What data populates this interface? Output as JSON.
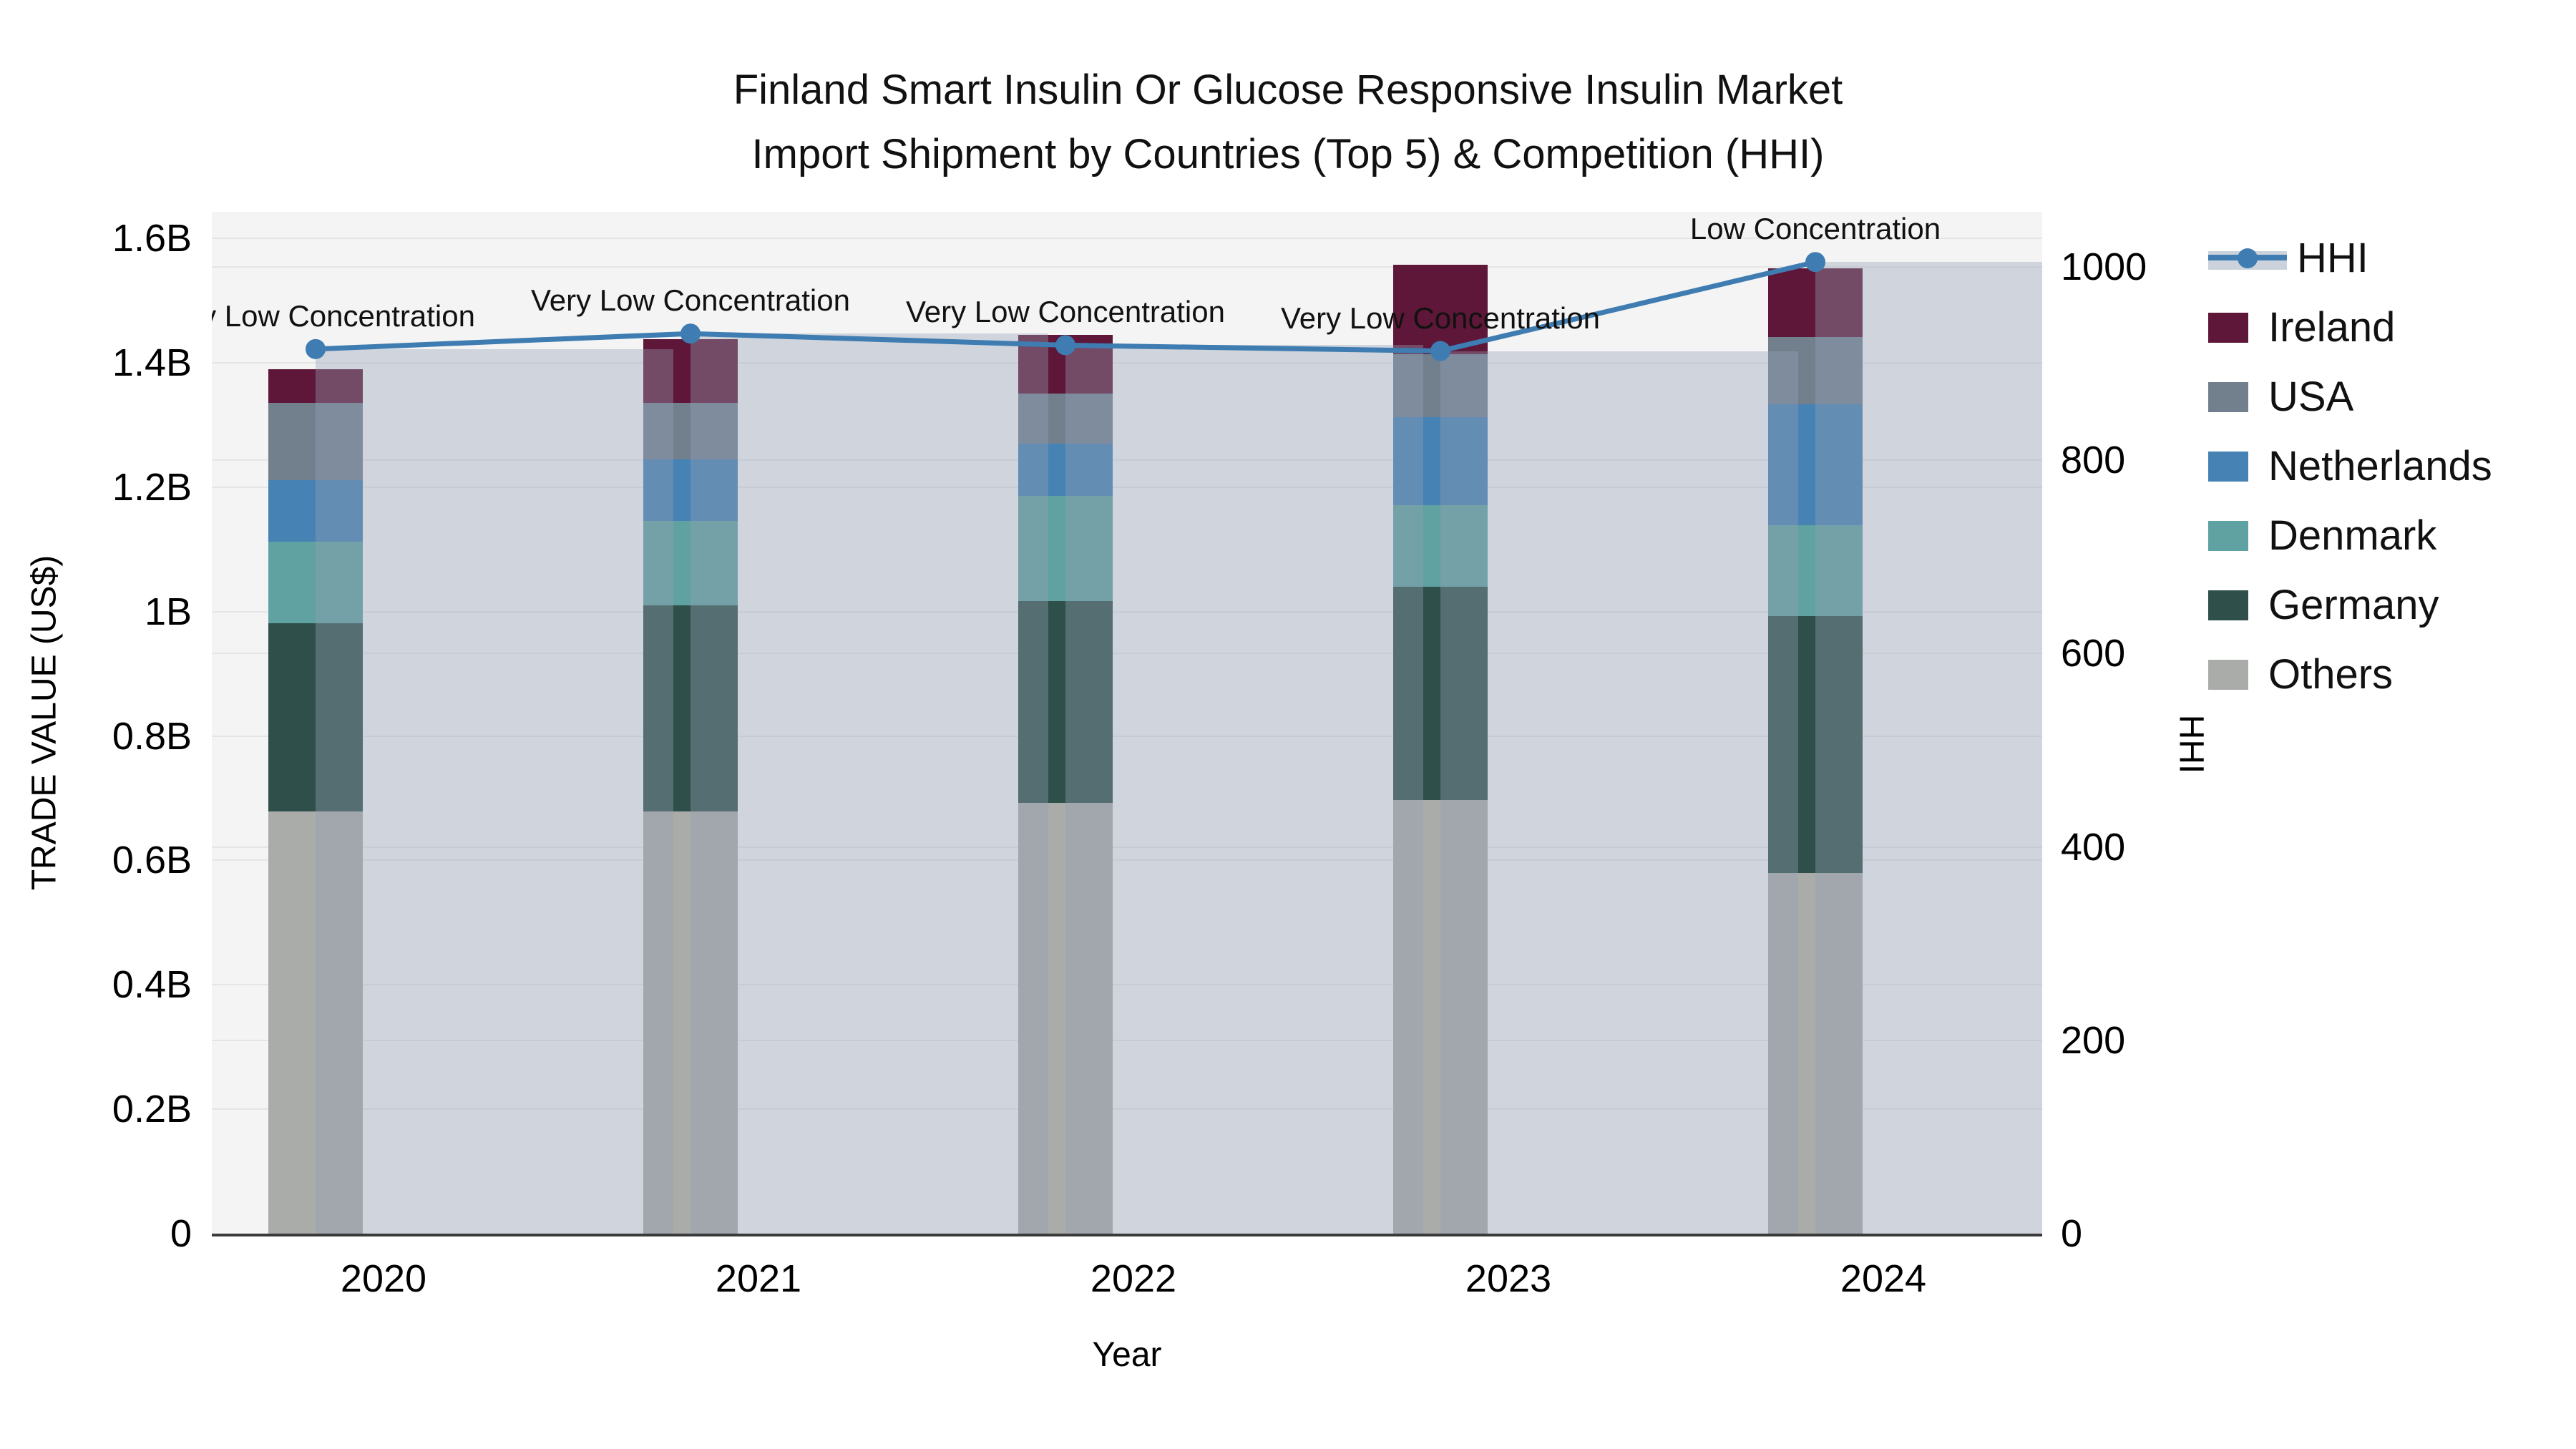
{
  "title": {
    "line1": "Finland Smart Insulin Or Glucose Responsive Insulin Market",
    "line2": "Import Shipment by Countries (Top 5) & Competition (HHI)"
  },
  "axes": {
    "y_left": {
      "title": "TRADE VALUE (US$)",
      "tick_labels": [
        "0",
        "0.2B",
        "0.4B",
        "0.6B",
        "0.8B",
        "1B",
        "1.2B",
        "1.4B",
        "1.6B"
      ],
      "tick_values": [
        0,
        0.2,
        0.4,
        0.6,
        0.8,
        1.0,
        1.2,
        1.4,
        1.6
      ],
      "range": [
        0,
        1.6
      ]
    },
    "y_right": {
      "title": "HHI",
      "tick_labels": [
        "0",
        "200",
        "400",
        "600",
        "800",
        "1000"
      ],
      "tick_values": [
        0,
        200,
        400,
        600,
        800,
        1000
      ],
      "range": [
        0,
        1057
      ]
    },
    "x": {
      "title": "Year",
      "tick_labels": [
        "2020",
        "2021",
        "2022",
        "2023",
        "2024"
      ]
    }
  },
  "legend": [
    {
      "label": "HHI",
      "type": "line",
      "color": "#3e7cb1"
    },
    {
      "label": "Ireland",
      "type": "swatch",
      "color": "#5e1738"
    },
    {
      "label": "USA",
      "type": "swatch",
      "color": "#72808e"
    },
    {
      "label": "Netherlands",
      "type": "swatch",
      "color": "#4682b4"
    },
    {
      "label": "Denmark",
      "type": "swatch",
      "color": "#5fa2a1"
    },
    {
      "label": "Germany",
      "type": "swatch",
      "color": "#2e4f4a"
    },
    {
      "label": "Others",
      "type": "swatch",
      "color": "#aaaca9"
    }
  ],
  "chart_data": {
    "type": "bar",
    "subtype": "stacked-bars-with-line",
    "title": "Finland Smart Insulin Or Glucose Responsive Insulin Market Import Shipment by Countries (Top 5) & Competition (HHI)",
    "xlabel": "Year",
    "ylabel_left": "TRADE VALUE (US$)",
    "ylabel_right": "HHI",
    "ylim_left_billions": [
      0,
      1.6
    ],
    "ylim_right": [
      0,
      1057
    ],
    "grid": true,
    "legend_position": "right",
    "categories": [
      "2020",
      "2021",
      "2022",
      "2023",
      "2024"
    ],
    "series": [
      {
        "name": "Others",
        "unit": "billion US$",
        "color": "#aaaca9",
        "values": [
          0.679,
          0.679,
          0.693,
          0.697,
          0.58
        ]
      },
      {
        "name": "Germany",
        "unit": "billion US$",
        "color": "#2e4f4a",
        "values": [
          0.302,
          0.331,
          0.324,
          0.343,
          0.413
        ]
      },
      {
        "name": "Denmark",
        "unit": "billion US$",
        "color": "#5fa2a1",
        "values": [
          0.131,
          0.136,
          0.169,
          0.131,
          0.146
        ]
      },
      {
        "name": "Netherlands",
        "unit": "billion US$",
        "color": "#4682b4",
        "values": [
          0.099,
          0.098,
          0.084,
          0.141,
          0.194
        ]
      },
      {
        "name": "USA",
        "unit": "billion US$",
        "color": "#72808e",
        "values": [
          0.125,
          0.092,
          0.08,
          0.102,
          0.108
        ]
      },
      {
        "name": "Ireland",
        "unit": "billion US$",
        "color": "#5e1738",
        "values": [
          0.053,
          0.102,
          0.095,
          0.144,
          0.111
        ]
      }
    ],
    "totals_billions": [
      1.389,
      1.438,
      1.445,
      1.558,
      1.552
    ],
    "hhi_line": {
      "name": "HHI",
      "color": "#3e7cb1",
      "values": [
        915,
        931,
        919,
        913,
        1005
      ]
    },
    "annotations": [
      {
        "category": "2020",
        "text": "Very Low Concentration"
      },
      {
        "category": "2021",
        "text": "Very Low Concentration"
      },
      {
        "category": "2022",
        "text": "Very Low Concentration"
      },
      {
        "category": "2023",
        "text": "Very Low Concentration"
      },
      {
        "category": "2024",
        "text": "Low Concentration"
      }
    ]
  },
  "colors": {
    "plot_background": "#f4f4f4",
    "figure_background": "#ffffff",
    "gridline": "#e5e5e5",
    "axis_line": "#3a3a3a",
    "hhi_translucent_bar": "rgba(150,160,182,0.38)",
    "hhi_line": "#3e7cb1",
    "text": "#111111"
  }
}
